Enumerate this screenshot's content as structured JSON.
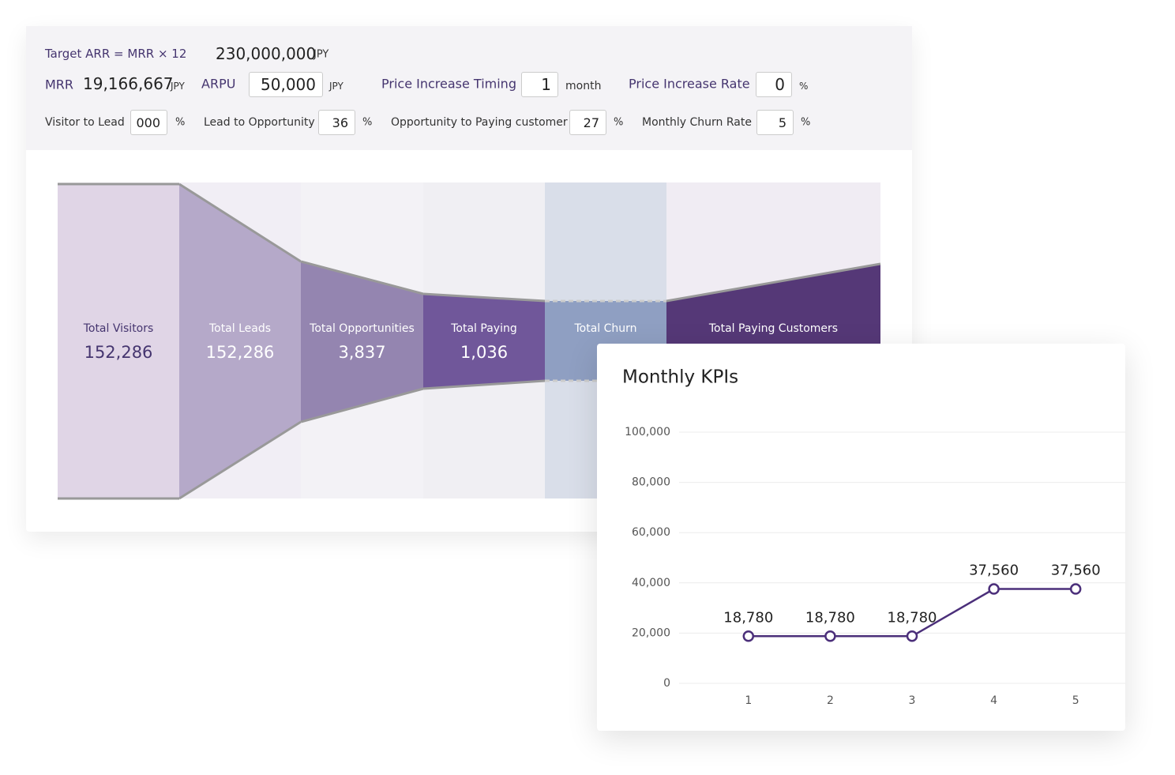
{
  "header": {
    "target": {
      "label": "Target ARR = MRR × 12",
      "value": "230,000,000",
      "unit": "JPY"
    },
    "mrr": {
      "label": "MRR",
      "value": "19,166,667",
      "unit": "JPY"
    },
    "inputs_row1": [
      {
        "label": "ARPU",
        "value": "50,000",
        "unit": "JPY"
      },
      {
        "label": "Price Increase Timing",
        "value": "1",
        "unit": "month"
      },
      {
        "label": "Price Increase Rate",
        "value": "0",
        "unit": "%"
      }
    ],
    "inputs_row2": [
      {
        "label": "Visitor to Lead",
        "value": "000",
        "unit": "%"
      },
      {
        "label": "Lead to Opportunity",
        "value": "36",
        "unit": "%"
      },
      {
        "label": "Opportunity to Paying customer",
        "value": "27",
        "unit": "%"
      },
      {
        "label": "Monthly Churn Rate",
        "value": "5",
        "unit": "%"
      }
    ]
  },
  "funnel": {
    "stages": [
      {
        "label": "Total Visitors",
        "value": "152,286"
      },
      {
        "label": "Total Leads",
        "value": "152,286"
      },
      {
        "label": "Total Opportunities",
        "value": "3,837"
      },
      {
        "label": "Total Paying",
        "value": "1,036"
      },
      {
        "label": "Total Churn"
      },
      {
        "label": "Total Paying Customers"
      }
    ]
  },
  "chart_data": {
    "type": "line",
    "title": "Monthly KPIs",
    "categories": [
      1,
      2,
      3,
      4,
      5
    ],
    "series": [
      {
        "color": "#4b2f7a",
        "values": [
          18780,
          18780,
          18780,
          37560,
          37560
        ],
        "value_labels": [
          "18,780",
          "18,780",
          "18,780",
          "37,560",
          "37,560"
        ]
      }
    ],
    "ylim": [
      0,
      100000
    ],
    "yticks": [
      0,
      {
        "value": 20000,
        "label": "20,000"
      },
      {
        "value": 40000,
        "label": "40,000"
      },
      {
        "value": 60000,
        "label": "60,000"
      },
      {
        "value": 80000,
        "label": "80,000"
      },
      {
        "value": 100000,
        "label": "100,000"
      }
    ],
    "grid": true
  }
}
